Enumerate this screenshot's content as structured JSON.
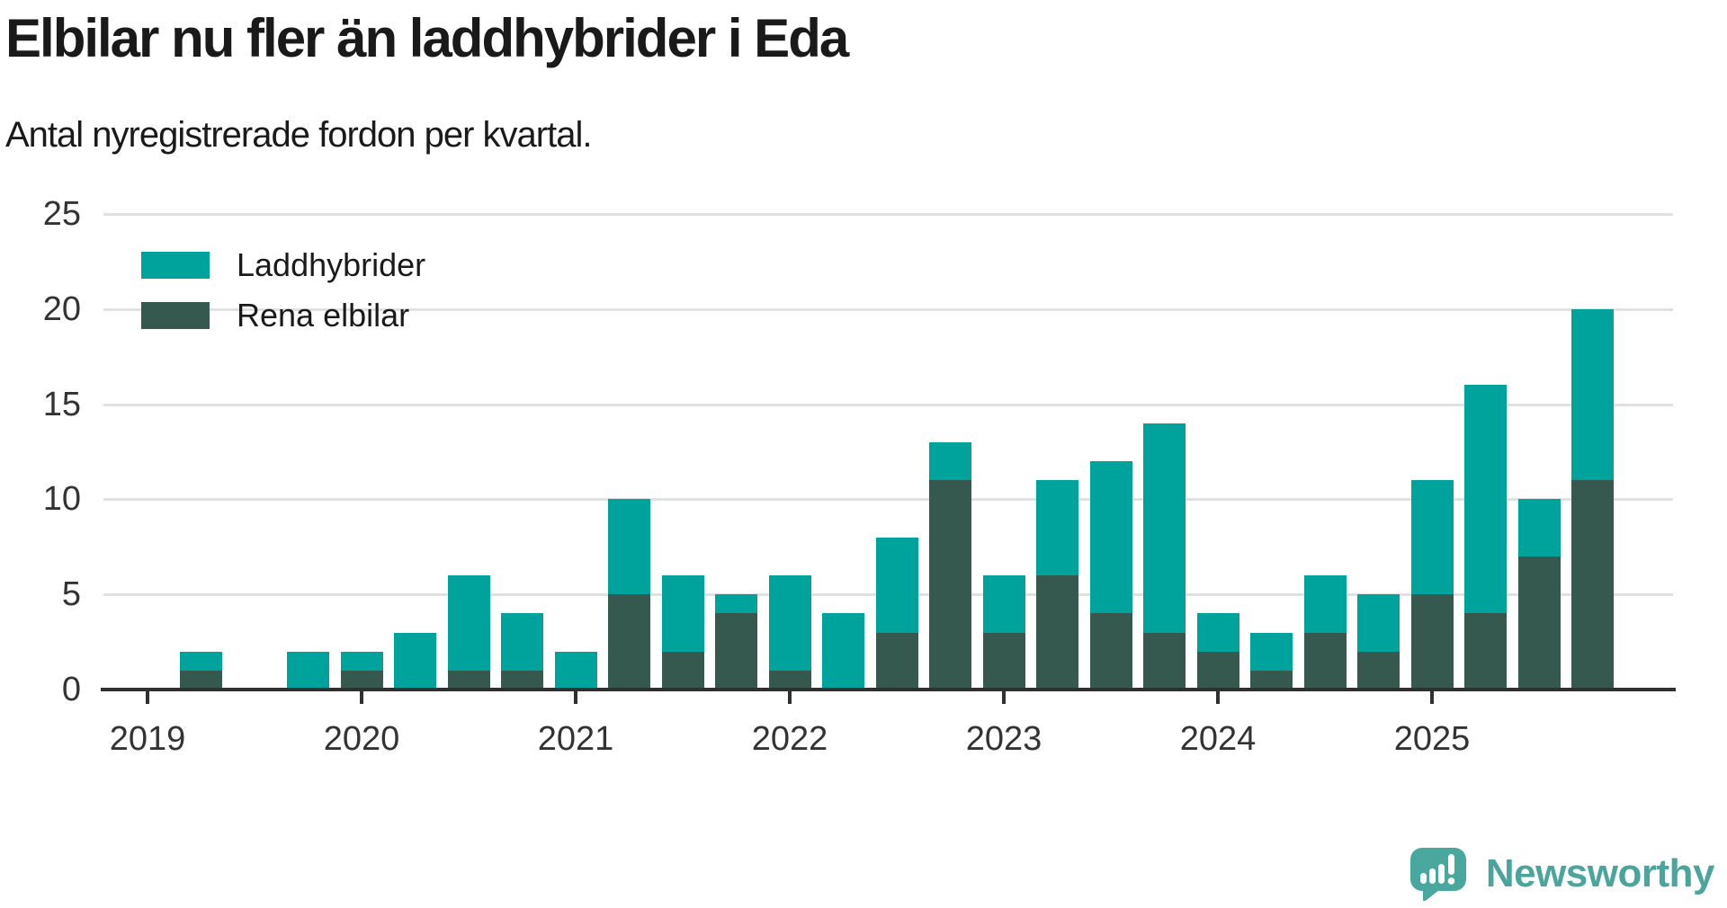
{
  "title": "Elbilar nu fler än laddhybrider i Eda",
  "subtitle": "Antal nyregistrerade fordon per kvartal.",
  "legend": {
    "items": [
      {
        "label": "Laddhybrider",
        "color": "#00a39b"
      },
      {
        "label": "Rena elbilar",
        "color": "#35594f"
      }
    ]
  },
  "colors": {
    "laddhybrider": "#00a39b",
    "rena_elbilar": "#35594f",
    "gridline": "#e1e1e1",
    "axis": "#303030",
    "text": "#1a1a1a",
    "tick_text": "#333333",
    "brand": "#4ba59d"
  },
  "branding": {
    "name": "Newsworthy"
  },
  "chart_data": {
    "type": "bar",
    "stacked": true,
    "title": "Elbilar nu fler än laddhybrider i Eda",
    "subtitle": "Antal nyregistrerade fordon per kvartal.",
    "xlabel": "",
    "ylabel": "",
    "ylim": [
      0,
      25
    ],
    "yticks": [
      0,
      5,
      10,
      15,
      20,
      25
    ],
    "grid": true,
    "legend_position": "top-left",
    "x_tick_labels": [
      "2019",
      "2020",
      "2021",
      "2022",
      "2023",
      "2024",
      "2025"
    ],
    "categories": [
      "2019 Q1",
      "2019 Q2",
      "2019 Q3",
      "2019 Q4",
      "2020 Q1",
      "2020 Q2",
      "2020 Q3",
      "2020 Q4",
      "2021 Q1",
      "2021 Q2",
      "2021 Q3",
      "2021 Q4",
      "2022 Q1",
      "2022 Q2",
      "2022 Q3",
      "2022 Q4",
      "2023 Q1",
      "2023 Q2",
      "2023 Q3",
      "2023 Q4",
      "2024 Q1",
      "2024 Q2",
      "2024 Q3",
      "2024 Q4",
      "2025 Q1",
      "2025 Q2",
      "2025 Q3",
      "2025 Q4"
    ],
    "series": [
      {
        "name": "Rena elbilar",
        "color": "#35594f",
        "values": [
          0,
          1,
          0,
          0,
          1,
          0,
          1,
          1,
          0,
          5,
          2,
          4,
          1,
          0,
          3,
          11,
          3,
          6,
          4,
          3,
          2,
          1,
          3,
          2,
          5,
          4,
          7,
          11
        ]
      },
      {
        "name": "Laddhybrider",
        "color": "#00a39b",
        "values": [
          0,
          1,
          0,
          2,
          1,
          3,
          5,
          3,
          2,
          5,
          4,
          1,
          5,
          4,
          5,
          2,
          3,
          5,
          8,
          11,
          2,
          2,
          3,
          3,
          6,
          12,
          3,
          9
        ]
      }
    ],
    "totals": [
      0,
      2,
      0,
      2,
      2,
      3,
      6,
      4,
      2,
      10,
      6,
      5,
      6,
      4,
      8,
      13,
      6,
      11,
      12,
      14,
      4,
      3,
      6,
      5,
      11,
      16,
      10,
      20
    ]
  }
}
